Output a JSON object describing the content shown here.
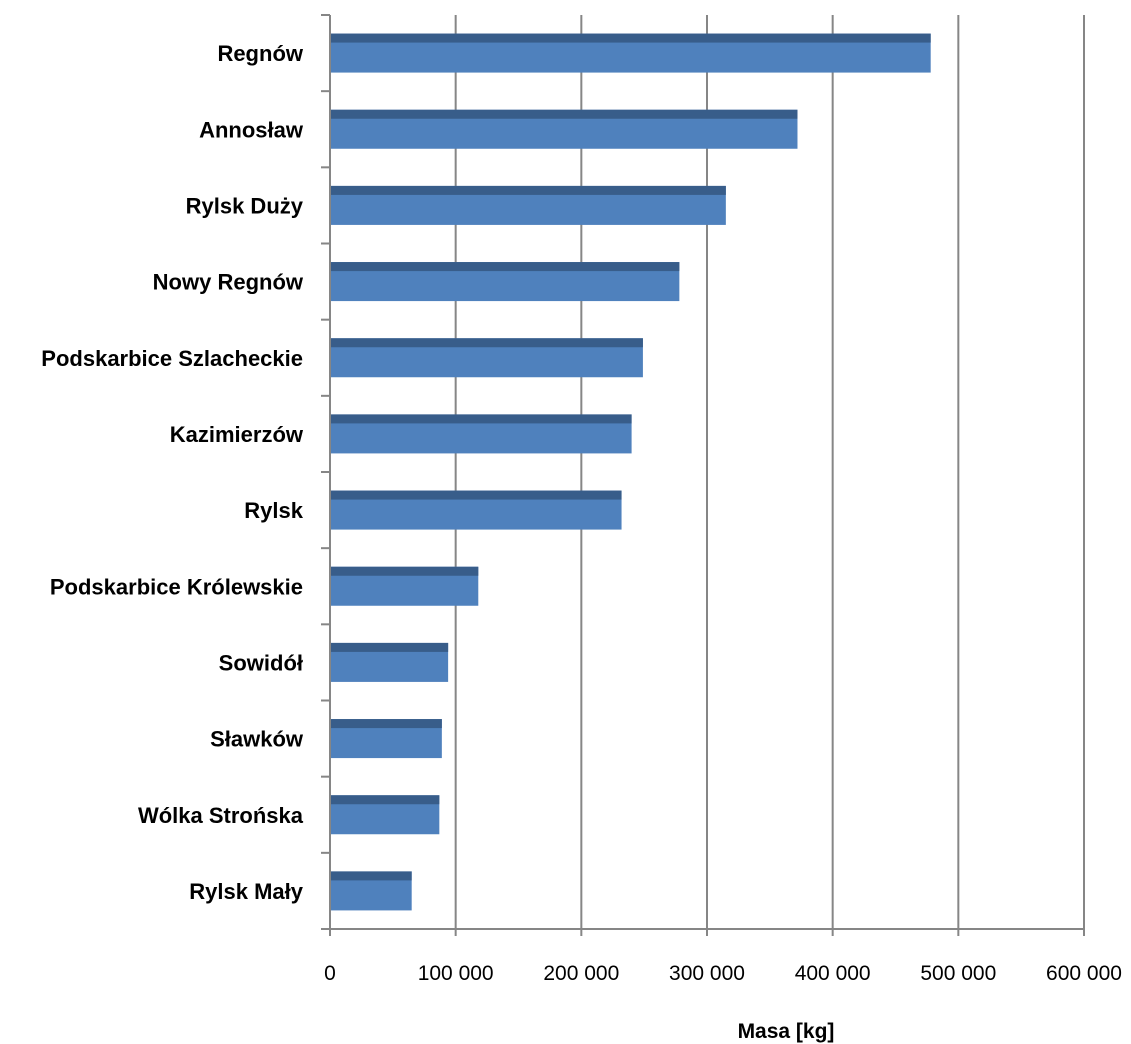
{
  "chart_data": {
    "type": "bar",
    "orientation": "horizontal",
    "categories": [
      "Regnów",
      "Annosław",
      "Rylsk Duży",
      "Nowy Regnów",
      "Podskarbice Szlacheckie",
      "Kazimierzów",
      "Rylsk",
      "Podskarbice Królewskie",
      "Sowidół",
      "Sławków",
      "Wólka Strońska",
      "Rylsk Mały"
    ],
    "values": [
      478000,
      372000,
      315000,
      278000,
      249000,
      240000,
      232000,
      118000,
      94000,
      89000,
      87000,
      65000
    ],
    "xlabel": "Masa [kg]",
    "ylabel": "",
    "xlim": [
      0,
      600000
    ],
    "x_ticks": [
      0,
      100000,
      200000,
      300000,
      400000,
      500000,
      600000
    ],
    "x_tick_labels": [
      "0",
      "100 000",
      "200 000",
      "300 000",
      "400 000",
      "500 000",
      "600 000"
    ],
    "grid": "vertical",
    "legend": "none",
    "colors": {
      "bar": "#4f81bd",
      "bar_top": "#385d8a",
      "grid": "#868686",
      "axis": "#868686"
    }
  }
}
